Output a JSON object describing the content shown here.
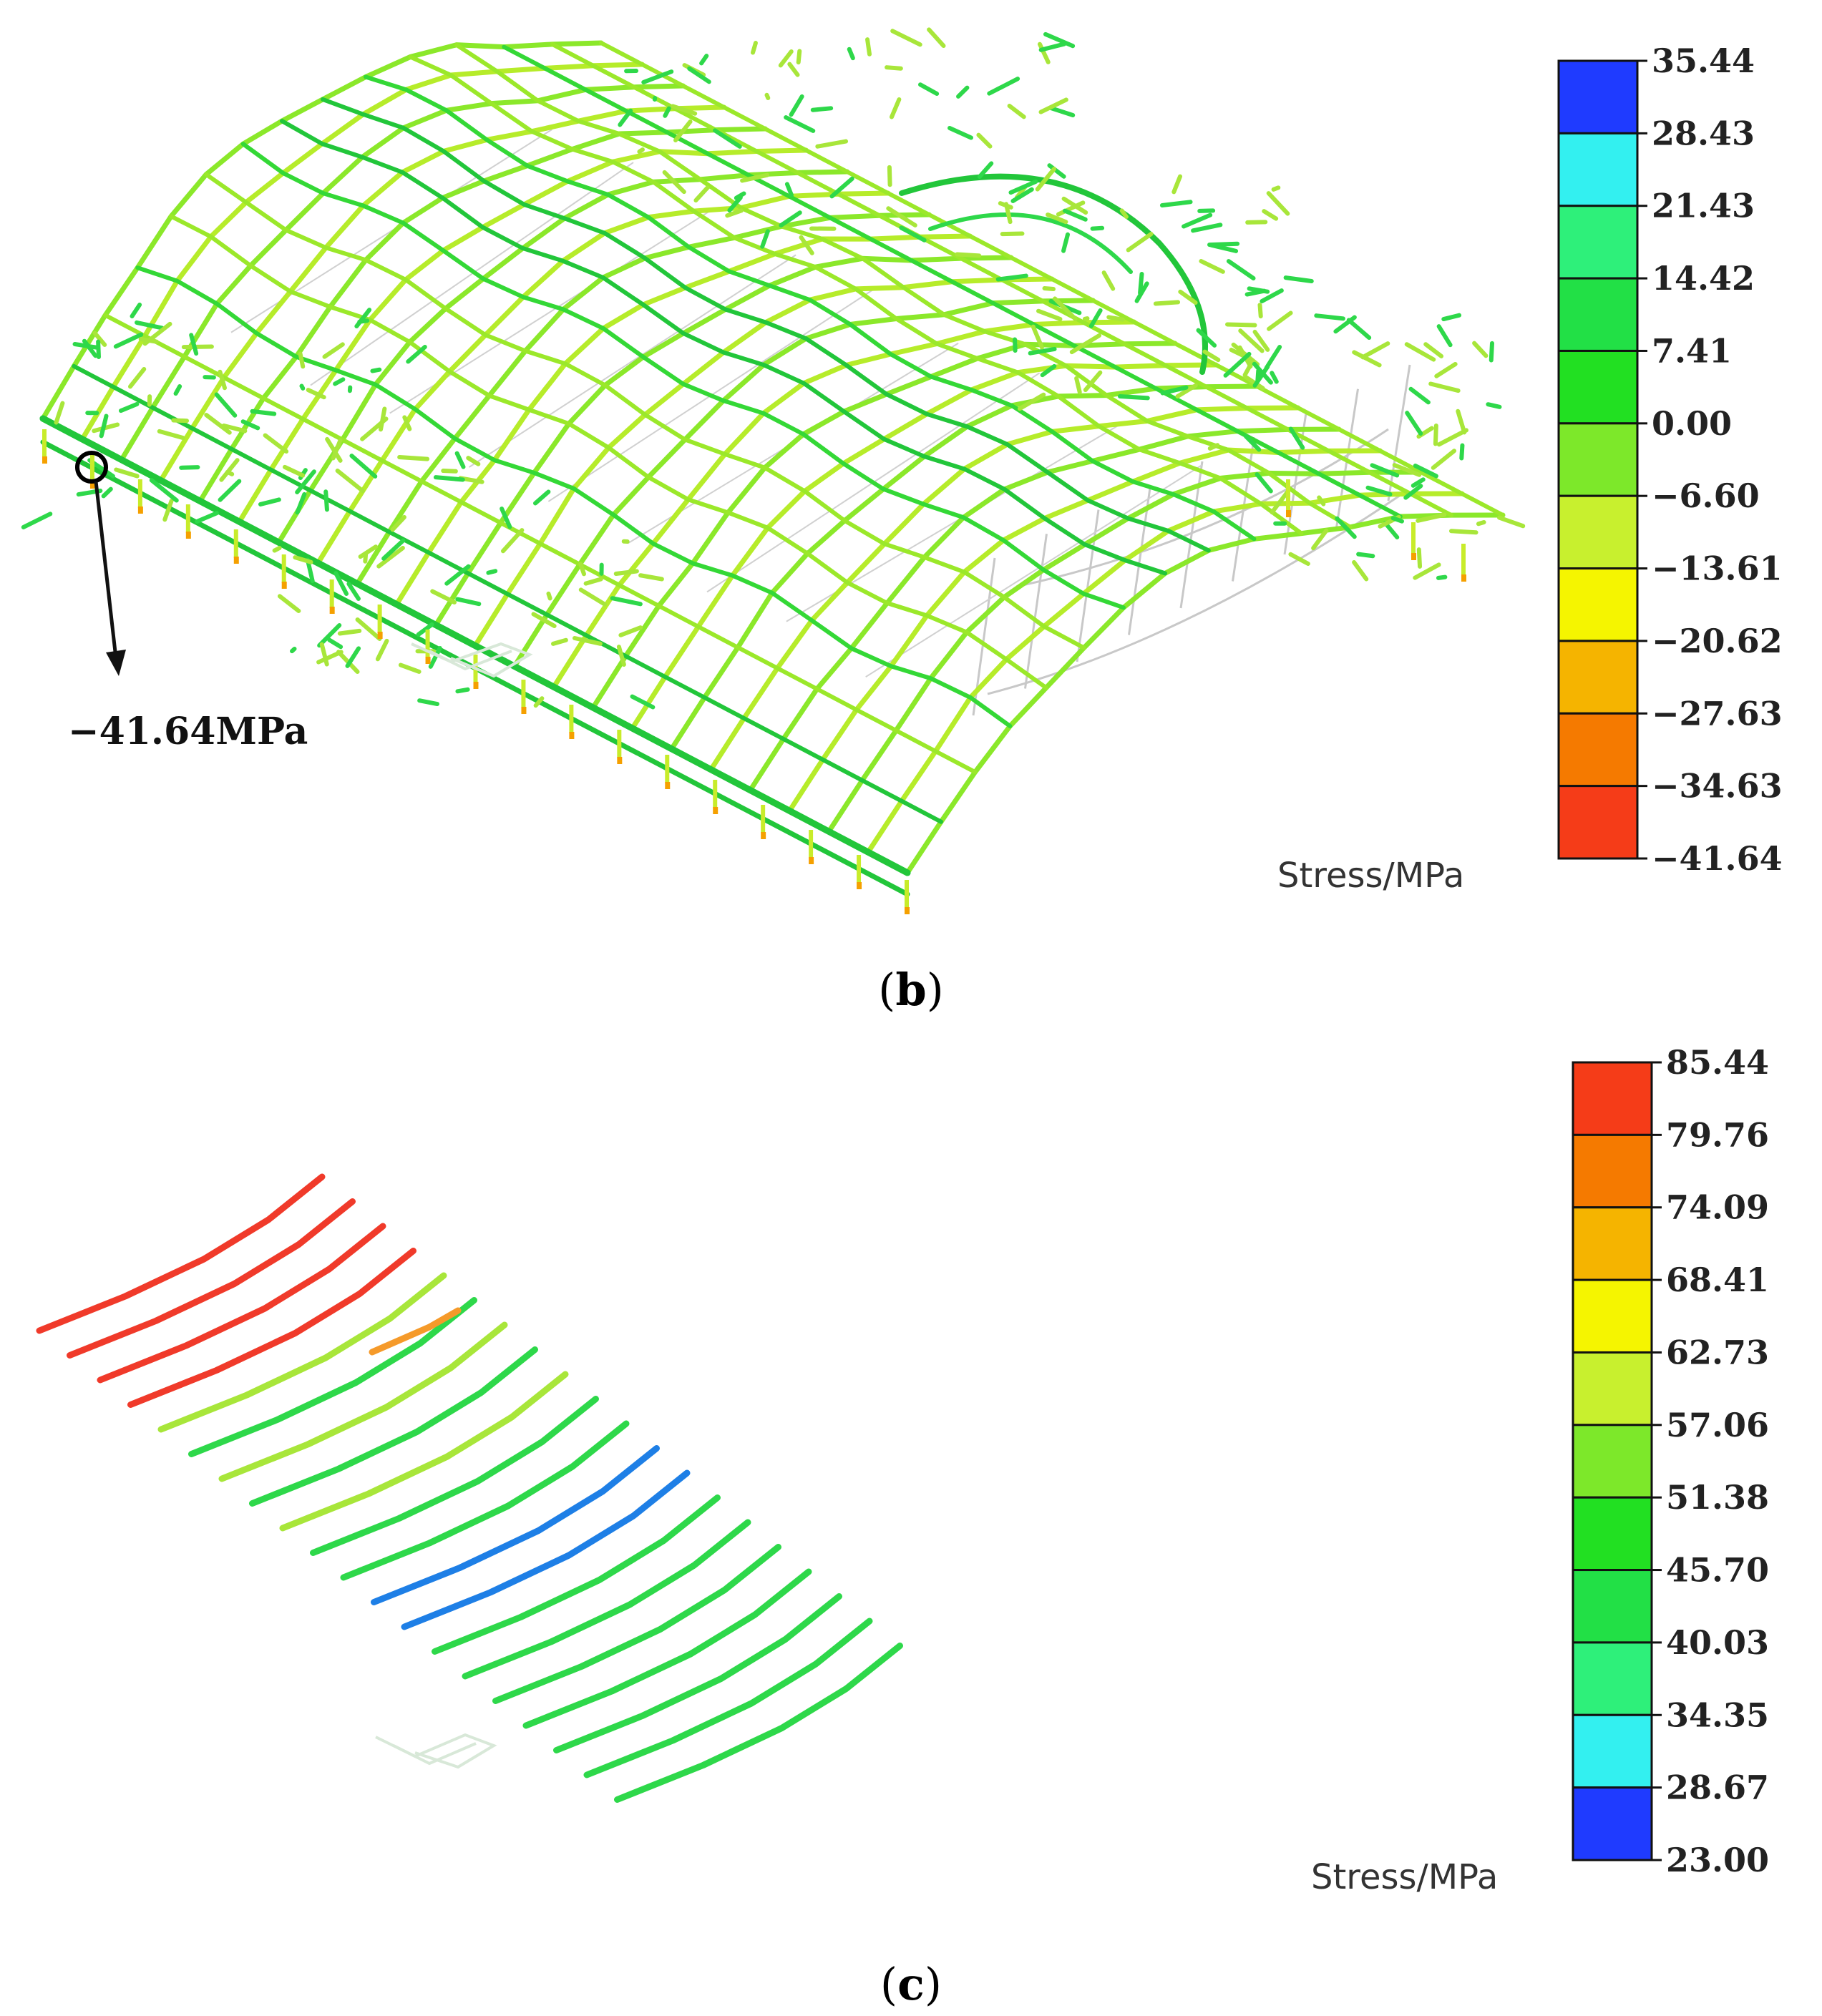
{
  "panel_b": {
    "label": "b",
    "callout": "−41.64MPa",
    "unit": "Stress/MPa",
    "colorbar": {
      "ticks": [
        "35.44",
        "28.43",
        "21.43",
        "14.42",
        "7.41",
        "0.00",
        "−6.60",
        "−13.61",
        "−20.62",
        "−27.63",
        "−34.63",
        "−41.64"
      ],
      "colors": [
        "#1f3bff",
        "#33f0f0",
        "#2ef07a",
        "#22e046",
        "#22e022",
        "#7de82a",
        "#c8f02e",
        "#f5f500",
        "#f5b400",
        "#f57a00",
        "#f53c18"
      ]
    }
  },
  "panel_c": {
    "label": "c",
    "unit": "Stress/MPa",
    "colorbar": {
      "ticks": [
        "85.44",
        "79.76",
        "74.09",
        "68.41",
        "62.73",
        "57.06",
        "51.38",
        "45.70",
        "40.03",
        "34.35",
        "28.67",
        "23.00"
      ],
      "colors": [
        "#f53c18",
        "#f57a00",
        "#f5b400",
        "#f5f500",
        "#c8f02e",
        "#7de82a",
        "#22e022",
        "#22e046",
        "#2ef07a",
        "#33f0f0",
        "#1f3bff"
      ]
    },
    "line_colors": [
      "#f03a2a",
      "#f03a2a",
      "#f03a2a",
      "#f03a2a",
      "#a8e63a",
      "#2ed84a",
      "#a8e63a",
      "#2ed84a",
      "#a8e63a",
      "#2ed84a",
      "#2ed84a",
      "#1e7fe6",
      "#1e7fe6",
      "#2ed84a",
      "#2ed84a",
      "#2ed84a",
      "#2ed84a",
      "#2ed84a",
      "#2ed84a",
      "#2ed84a"
    ]
  }
}
